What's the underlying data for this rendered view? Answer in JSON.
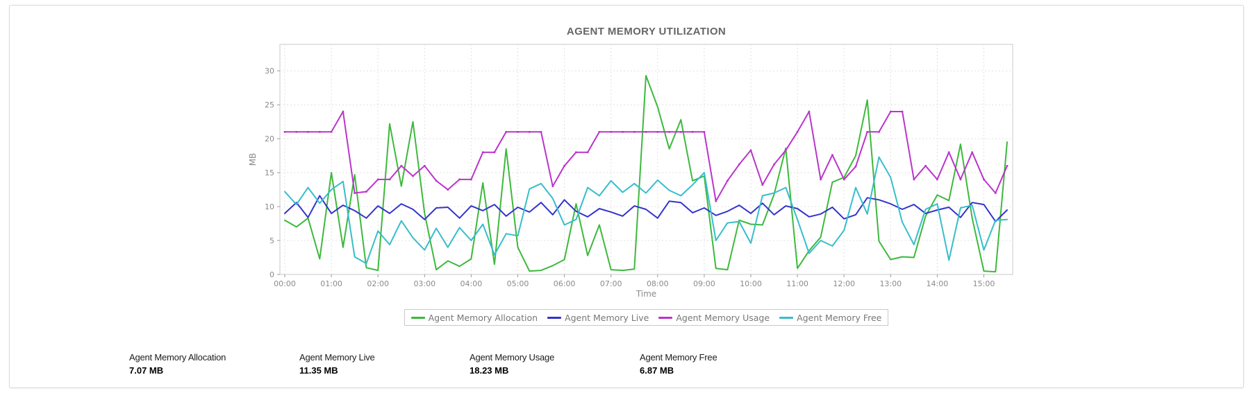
{
  "page": {
    "title": "AGENT MEMORY UTILIZATION"
  },
  "chart_data": {
    "type": "line",
    "title": "AGENT MEMORY UTILIZATION",
    "xlabel": "Time",
    "ylabel": "MB",
    "grid": true,
    "legend_position": "bottom",
    "ylim": [
      0,
      33.9
    ],
    "yticks": [
      0,
      5,
      10,
      15,
      20,
      25,
      30
    ],
    "xtick_hours": [
      0,
      1,
      2,
      3,
      4,
      5,
      6,
      7,
      8,
      9,
      10,
      11,
      12,
      13,
      14,
      15
    ],
    "xtick_labels": [
      "00:00",
      "01:00",
      "02:00",
      "03:00",
      "04:00",
      "05:00",
      "06:00",
      "07:00",
      "08:00",
      "09:00",
      "10:00",
      "11:00",
      "12:00",
      "13:00",
      "14:00",
      "15:00"
    ],
    "x_start_hour": 0,
    "x_step_hours": 0.25,
    "x_axis_max_hour": 15.72,
    "colors": {
      "grid": "#e0e0e0",
      "plot_border": "#c8c8c8",
      "tick": "#9a9a9a"
    },
    "series": [
      {
        "name": "Agent Memory Allocation",
        "color": "#3cb93c",
        "markers": false,
        "values": [
          8.0,
          7.0,
          8.3,
          2.3,
          15.0,
          4.0,
          14.7,
          1.0,
          0.6,
          22.2,
          13.0,
          22.5,
          9.0,
          0.7,
          2.0,
          1.2,
          2.3,
          13.5,
          1.5,
          18.5,
          4.0,
          0.5,
          0.6,
          1.3,
          2.2,
          10.4,
          2.8,
          7.3,
          0.7,
          0.6,
          0.8,
          29.3,
          24.7,
          18.5,
          22.8,
          13.8,
          14.5,
          0.9,
          0.7,
          8.0,
          7.4,
          7.3,
          11.8,
          18.6,
          0.9,
          3.5,
          5.5,
          13.6,
          14.3,
          17.5,
          25.7,
          4.9,
          2.2,
          2.6,
          2.5,
          8.6,
          11.7,
          10.9,
          19.2,
          8.3,
          0.5,
          0.4,
          19.5
        ]
      },
      {
        "name": "Agent Memory Live",
        "color": "#3333cc",
        "markers": false,
        "values": [
          9.0,
          10.6,
          8.4,
          11.6,
          9.0,
          10.2,
          9.4,
          8.3,
          10.1,
          9.0,
          10.4,
          9.6,
          8.1,
          9.8,
          9.9,
          8.3,
          10.1,
          9.4,
          10.3,
          8.6,
          9.9,
          9.2,
          10.6,
          8.8,
          11.0,
          9.3,
          8.5,
          9.7,
          9.2,
          8.6,
          10.1,
          9.6,
          8.3,
          10.8,
          10.6,
          9.1,
          9.8,
          8.7,
          9.3,
          10.2,
          9.0,
          10.5,
          8.8,
          10.1,
          9.7,
          8.5,
          8.9,
          9.9,
          8.2,
          8.8,
          11.3,
          11.0,
          10.4,
          9.6,
          10.3,
          9.0,
          9.5,
          9.9,
          8.4,
          10.6,
          10.3,
          7.8,
          9.5
        ]
      },
      {
        "name": "Agent Memory Usage",
        "color": "#bb33cc",
        "markers": true,
        "values": [
          21,
          21,
          21,
          21,
          21,
          24,
          12,
          12.2,
          14,
          14,
          16,
          14.5,
          16,
          13.8,
          12.5,
          14,
          14,
          18,
          18,
          21,
          21,
          21,
          21,
          13,
          16,
          18,
          18,
          21,
          21,
          21,
          21,
          21,
          21,
          21,
          21,
          21,
          21,
          10.8,
          13.8,
          16.2,
          18.3,
          13.2,
          16.2,
          18.3,
          21,
          24,
          14,
          17.6,
          14,
          15.9,
          21,
          21,
          24,
          24,
          14,
          16,
          14,
          18,
          14,
          18,
          14,
          12,
          16
        ]
      },
      {
        "name": "Agent Memory Free",
        "color": "#36bdcb",
        "markers": false,
        "values": [
          12.2,
          10.3,
          12.8,
          10.5,
          12.5,
          13.7,
          2.6,
          1.6,
          6.4,
          4.4,
          7.9,
          5.4,
          3.6,
          6.8,
          4.0,
          6.9,
          5.0,
          7.4,
          2.9,
          6.0,
          5.7,
          12.6,
          13.4,
          11.2,
          7.3,
          8.1,
          12.8,
          11.6,
          13.8,
          12.1,
          13.4,
          12.0,
          13.9,
          12.4,
          11.6,
          13.2,
          15.0,
          5.0,
          7.6,
          7.8,
          4.6,
          11.6,
          12.0,
          12.8,
          8.1,
          3.1,
          5.0,
          4.2,
          6.5,
          12.8,
          8.9,
          17.3,
          14.3,
          7.7,
          4.4,
          9.6,
          10.4,
          2.1,
          9.8,
          10.2,
          3.6,
          8.0,
          8.1
        ]
      }
    ]
  },
  "summary_stats": [
    {
      "label": "Agent Memory Allocation",
      "value": "7.07 MB"
    },
    {
      "label": "Agent Memory Live",
      "value": "11.35 MB"
    },
    {
      "label": "Agent Memory Usage",
      "value": "18.23 MB"
    },
    {
      "label": "Agent Memory Free",
      "value": "6.87 MB"
    }
  ]
}
